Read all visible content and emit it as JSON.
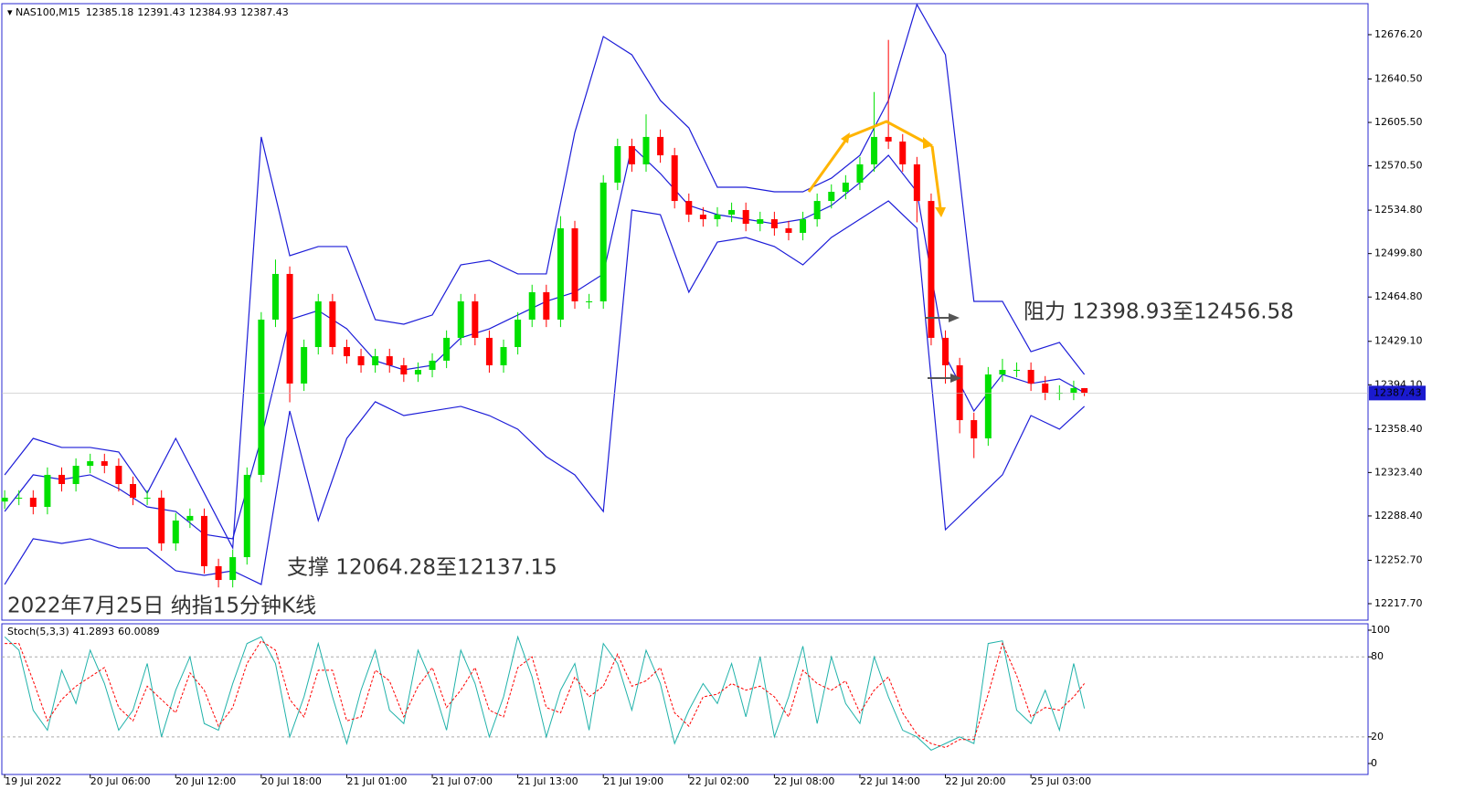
{
  "chart_data": [
    {
      "type": "candlestick",
      "symbol": "NAS100,M15",
      "header_values": [
        12385.18,
        12391.43,
        12384.93,
        12387.43
      ],
      "annotations": [
        "阻力 12398.93至12456.58",
        "支撑 12064.28至12137.15",
        "2022年7月25日 纳指15分钟K线"
      ],
      "current_price": 12387.43,
      "up_color": "#00e000",
      "down_color": "#ff0000",
      "xlim": [
        -0.8,
        382.6
      ],
      "xticks": [
        {
          "value": 0,
          "label": "19 Jul 2022"
        },
        {
          "value": 24,
          "label": "20 Jul 06:00"
        },
        {
          "value": 48,
          "label": "20 Jul 12:00"
        },
        {
          "value": 72,
          "label": "20 Jul 18:00"
        },
        {
          "value": 96,
          "label": "21 Jul 01:00"
        },
        {
          "value": 120,
          "label": "21 Jul 07:00"
        },
        {
          "value": 144,
          "label": "21 Jul 13:00"
        },
        {
          "value": 168,
          "label": "21 Jul 19:00"
        },
        {
          "value": 192,
          "label": "22 Jul 02:00"
        },
        {
          "value": 216,
          "label": "22 Jul 08:00"
        },
        {
          "value": 240,
          "label": "22 Jul 14:00"
        },
        {
          "value": 264,
          "label": "22 Jul 20:00"
        },
        {
          "value": 288,
          "label": "25 Jul 03:00"
        }
      ],
      "ylim": [
        12204.45,
        12701.2
      ],
      "yticks": [
        {
          "value": 12676.2,
          "label": "12676.20"
        },
        {
          "value": 12640.5,
          "label": "12640.50"
        },
        {
          "value": 12605.5,
          "label": "12605.50"
        },
        {
          "value": 12570.5,
          "label": "12570.50"
        },
        {
          "value": 12534.8,
          "label": "12534.80"
        },
        {
          "value": 12499.8,
          "label": "12499.80"
        },
        {
          "value": 12464.8,
          "label": "12464.80"
        },
        {
          "value": 12429.1,
          "label": "12429.10"
        },
        {
          "value": 12394.1,
          "label": "12394.10"
        },
        {
          "value": 12358.4,
          "label": "12358.40"
        },
        {
          "value": 12323.4,
          "label": "12323.40"
        },
        {
          "value": 12288.4,
          "label": "12288.40"
        },
        {
          "value": 12252.7,
          "label": "12252.70"
        },
        {
          "value": 12217.7,
          "label": "12217.70"
        }
      ],
      "x": [
        0,
        4,
        8,
        12,
        16,
        20,
        24,
        28,
        32,
        36,
        40,
        44,
        48,
        52,
        56,
        60,
        64,
        68,
        72,
        76,
        80,
        84,
        88,
        92,
        96,
        100,
        104,
        108,
        112,
        116,
        120,
        124,
        128,
        132,
        136,
        140,
        144,
        148,
        152,
        156,
        160,
        164,
        168,
        172,
        176,
        180,
        184,
        188,
        192,
        196,
        200,
        204,
        208,
        212,
        216,
        220,
        224,
        228,
        232,
        236,
        240,
        244,
        248,
        252,
        256,
        260,
        264,
        268,
        272,
        276,
        280,
        284,
        288,
        292,
        296,
        300,
        303
      ],
      "open": [
        12300,
        12303.1,
        12303.1,
        12295.7,
        12321.5,
        12314.1,
        12328.8,
        12332.5,
        12328.8,
        12314.1,
        12303.1,
        12303.1,
        12266.3,
        12284.7,
        12288.4,
        12247.9,
        12236.8,
        12255.2,
        12321.5,
        12446.6,
        12483.4,
        12395.1,
        12424.5,
        12461.3,
        12424.5,
        12417.1,
        12409.8,
        12417.1,
        12409.8,
        12402.4,
        12406.1,
        12413.5,
        12431.9,
        12461.3,
        12431.9,
        12409.8,
        12424.5,
        12446.6,
        12468.7,
        12446.6,
        12520.2,
        12461.3,
        12461.3,
        12557.0,
        12586.4,
        12571.7,
        12593.8,
        12579.0,
        12542.2,
        12531.2,
        12527.5,
        12531.2,
        12534.9,
        12523.8,
        12527.5,
        12520.2,
        12516.5,
        12527.5,
        12542.2,
        12549.6,
        12557.0,
        12571.7,
        12593.8,
        12590.1,
        12571.7,
        12542.2,
        12431.9,
        12409.8,
        12365.6,
        12350.9,
        12402.4,
        12406.1,
        12406.1,
        12395.1,
        12387.7,
        12387.7,
        12391.4
      ],
      "high": [
        12309.1,
        12309.1,
        12309.1,
        12327.5,
        12327.5,
        12334.8,
        12338.5,
        12338.5,
        12334.8,
        12320.1,
        12309.1,
        12309.1,
        12290.7,
        12294.4,
        12294.4,
        12253.9,
        12261.2,
        12327.5,
        12452.6,
        12495,
        12489.4,
        12430.5,
        12467.3,
        12467.3,
        12430.5,
        12423.1,
        12423.1,
        12423.1,
        12415.8,
        12412.1,
        12419.5,
        12437.9,
        12467.3,
        12467.3,
        12437.9,
        12430.5,
        12452.6,
        12474.7,
        12474.7,
        12530,
        12526.2,
        12467.3,
        12563,
        12592.4,
        12592.4,
        12612,
        12599.8,
        12585,
        12548.2,
        12537.2,
        12537.2,
        12540.9,
        12540.9,
        12533.5,
        12533.5,
        12526.2,
        12533.5,
        12548.2,
        12555.6,
        12563,
        12577.7,
        12630,
        12672,
        12596.1,
        12577.7,
        12548.2,
        12437.9,
        12415.8,
        12371.6,
        12408.4,
        12415,
        12412.1,
        12412.1,
        12401.1,
        12393.7,
        12397.4,
        12391.43
      ],
      "low": [
        12294,
        12297.1,
        12289.7,
        12289.7,
        12308.1,
        12308.1,
        12322.8,
        12322.8,
        12308.1,
        12297.1,
        12297.1,
        12260.3,
        12260.3,
        12278.7,
        12241.9,
        12230.8,
        12230.8,
        12249.2,
        12315.5,
        12440.6,
        12380,
        12389.1,
        12418.5,
        12418.5,
        12411.1,
        12403.8,
        12403.8,
        12403.8,
        12396.4,
        12396.4,
        12400.1,
        12407.5,
        12425.9,
        12425.9,
        12403.8,
        12403.8,
        12418.5,
        12440.6,
        12440.6,
        12440.6,
        12455.3,
        12455.3,
        12455.3,
        12551,
        12565.7,
        12565.7,
        12573,
        12536.2,
        12525.2,
        12521.5,
        12521.5,
        12525.2,
        12517.8,
        12517.8,
        12514.2,
        12510.5,
        12510.5,
        12521.5,
        12536.2,
        12543.6,
        12551,
        12565.7,
        12584.1,
        12565.7,
        12525,
        12425.9,
        12395,
        12355,
        12335,
        12344.9,
        12396.4,
        12400.1,
        12389.1,
        12381.7,
        12381.7,
        12381.7,
        12384.93
      ],
      "close": [
        12303.1,
        12303.1,
        12295.7,
        12321.5,
        12314.1,
        12328.8,
        12332.5,
        12328.8,
        12314.1,
        12303.1,
        12303.1,
        12266.3,
        12284.7,
        12288.4,
        12247.9,
        12236.8,
        12255.2,
        12321.5,
        12446.6,
        12483.4,
        12395.1,
        12424.5,
        12461.3,
        12424.5,
        12417.1,
        12409.8,
        12417.1,
        12409.8,
        12402.4,
        12406.1,
        12413.5,
        12431.9,
        12461.3,
        12431.9,
        12409.8,
        12424.5,
        12446.6,
        12468.7,
        12446.6,
        12520.2,
        12461.3,
        12461.3,
        12557.0,
        12586.4,
        12571.7,
        12593.8,
        12579.0,
        12542.2,
        12531.2,
        12527.5,
        12531.2,
        12534.9,
        12523.8,
        12527.5,
        12520.2,
        12516.5,
        12527.5,
        12542.2,
        12549.6,
        12557.0,
        12571.7,
        12593.8,
        12590.1,
        12571.7,
        12542.2,
        12431.9,
        12409.8,
        12365.6,
        12350.9,
        12402.4,
        12406.1,
        12406.1,
        12395.1,
        12387.7,
        12387.7,
        12391.4,
        12387.43
      ],
      "bollinger": {
        "color": "#1c1cd8",
        "x": [
          0,
          8,
          16,
          24,
          32,
          40,
          48,
          56,
          64,
          72,
          80,
          88,
          96,
          104,
          112,
          120,
          128,
          136,
          144,
          152,
          160,
          168,
          176,
          184,
          192,
          200,
          208,
          216,
          224,
          232,
          240,
          248,
          256,
          264,
          272,
          280,
          288,
          296,
          303
        ],
        "upper": [
          12321.5,
          12350.9,
          12343.6,
          12343.6,
          12339.9,
          12306.8,
          12350.9,
          12306.8,
          12262.6,
          12593.8,
          12498.1,
          12505.5,
          12505.5,
          12446.6,
          12442.9,
          12450.3,
          12490.7,
          12494.4,
          12483.4,
          12483.4,
          12597.4,
          12674.7,
          12660.0,
          12623.2,
          12601.1,
          12553.3,
          12553.3,
          12549.6,
          12549.6,
          12560.6,
          12579.0,
          12623.2,
          12700.5,
          12660.0,
          12461.3,
          12461.3,
          12420.8,
          12428.2,
          12402.4
        ],
        "middle": [
          12292.0,
          12321.5,
          12317.8,
          12321.5,
          12310.4,
          12295.7,
          12292.0,
          12273.6,
          12270.0,
          12350.9,
          12446.6,
          12453.9,
          12439.2,
          12413.5,
          12406.1,
          12409.8,
          12431.9,
          12439.2,
          12450.3,
          12461.3,
          12468.7,
          12483.4,
          12586.4,
          12564.3,
          12538.6,
          12531.2,
          12527.5,
          12523.8,
          12527.5,
          12538.6,
          12557.0,
          12579.0,
          12549.6,
          12417.1,
          12373.0,
          12402.4,
          12395.1,
          12398.8,
          12387.7
        ],
        "lower": [
          12233.2,
          12270.0,
          12266.3,
          12270.0,
          12262.6,
          12262.6,
          12244.2,
          12240.5,
          12244.2,
          12233.2,
          12373.0,
          12284.7,
          12350.9,
          12380.4,
          12369.3,
          12373.0,
          12376.7,
          12369.3,
          12358.3,
          12336.2,
          12321.5,
          12292.0,
          12534.9,
          12531.2,
          12468.7,
          12509.1,
          12512.8,
          12505.5,
          12490.7,
          12512.8,
          12527.5,
          12542.2,
          12520.2,
          12277.3,
          12299.4,
          12321.5,
          12369.3,
          12358.3,
          12376.7
        ]
      }
    },
    {
      "type": "line",
      "name": "Stoch(5,3,3)",
      "header_values": [
        41.2893,
        60.0089
      ],
      "ylim": [
        -8.2,
        104.8
      ],
      "yticks": [
        100,
        80,
        20,
        0
      ],
      "levels": [
        80,
        20
      ],
      "x": [
        0,
        4,
        8,
        12,
        16,
        20,
        24,
        28,
        32,
        36,
        40,
        44,
        48,
        52,
        56,
        60,
        64,
        68,
        72,
        76,
        80,
        84,
        88,
        92,
        96,
        100,
        104,
        108,
        112,
        116,
        120,
        124,
        128,
        132,
        136,
        140,
        144,
        148,
        152,
        156,
        160,
        164,
        168,
        172,
        176,
        180,
        184,
        188,
        192,
        196,
        200,
        204,
        208,
        212,
        216,
        220,
        224,
        228,
        232,
        236,
        240,
        244,
        248,
        252,
        256,
        260,
        264,
        268,
        272,
        276,
        280,
        284,
        288,
        292,
        296,
        300,
        303
      ],
      "series": [
        {
          "color": "#20b2aa",
          "dashed": false,
          "values": [
            95,
            85,
            40,
            25,
            70,
            45,
            85,
            60,
            25,
            40,
            75,
            20,
            55,
            80,
            30,
            25,
            60,
            90,
            95,
            75,
            20,
            50,
            90,
            50,
            15,
            55,
            85,
            40,
            30,
            85,
            60,
            25,
            85,
            60,
            20,
            50,
            95,
            65,
            20,
            55,
            75,
            25,
            90,
            75,
            40,
            85,
            60,
            15,
            40,
            60,
            45,
            75,
            35,
            80,
            20,
            50,
            88,
            30,
            80,
            45,
            30,
            80,
            50,
            25,
            20,
            10,
            15,
            20,
            15,
            90,
            92,
            40,
            30,
            55,
            25,
            75,
            41.29
          ]
        },
        {
          "color": "#ff0000",
          "dashed": true,
          "values": [
            90,
            90,
            62,
            32,
            48,
            58,
            65,
            72,
            42,
            32,
            58,
            48,
            38,
            68,
            55,
            28,
            42,
            75,
            92,
            85,
            48,
            35,
            70,
            70,
            32,
            35,
            70,
            62,
            35,
            58,
            72,
            42,
            55,
            72,
            40,
            35,
            72,
            80,
            42,
            38,
            65,
            50,
            58,
            82,
            58,
            62,
            72,
            38,
            28,
            50,
            52,
            60,
            55,
            58,
            50,
            35,
            70,
            60,
            55,
            62,
            38,
            55,
            65,
            38,
            22,
            15,
            12,
            18,
            18,
            52,
            90,
            66,
            35,
            42,
            40,
            50,
            60.01
          ]
        }
      ]
    }
  ]
}
